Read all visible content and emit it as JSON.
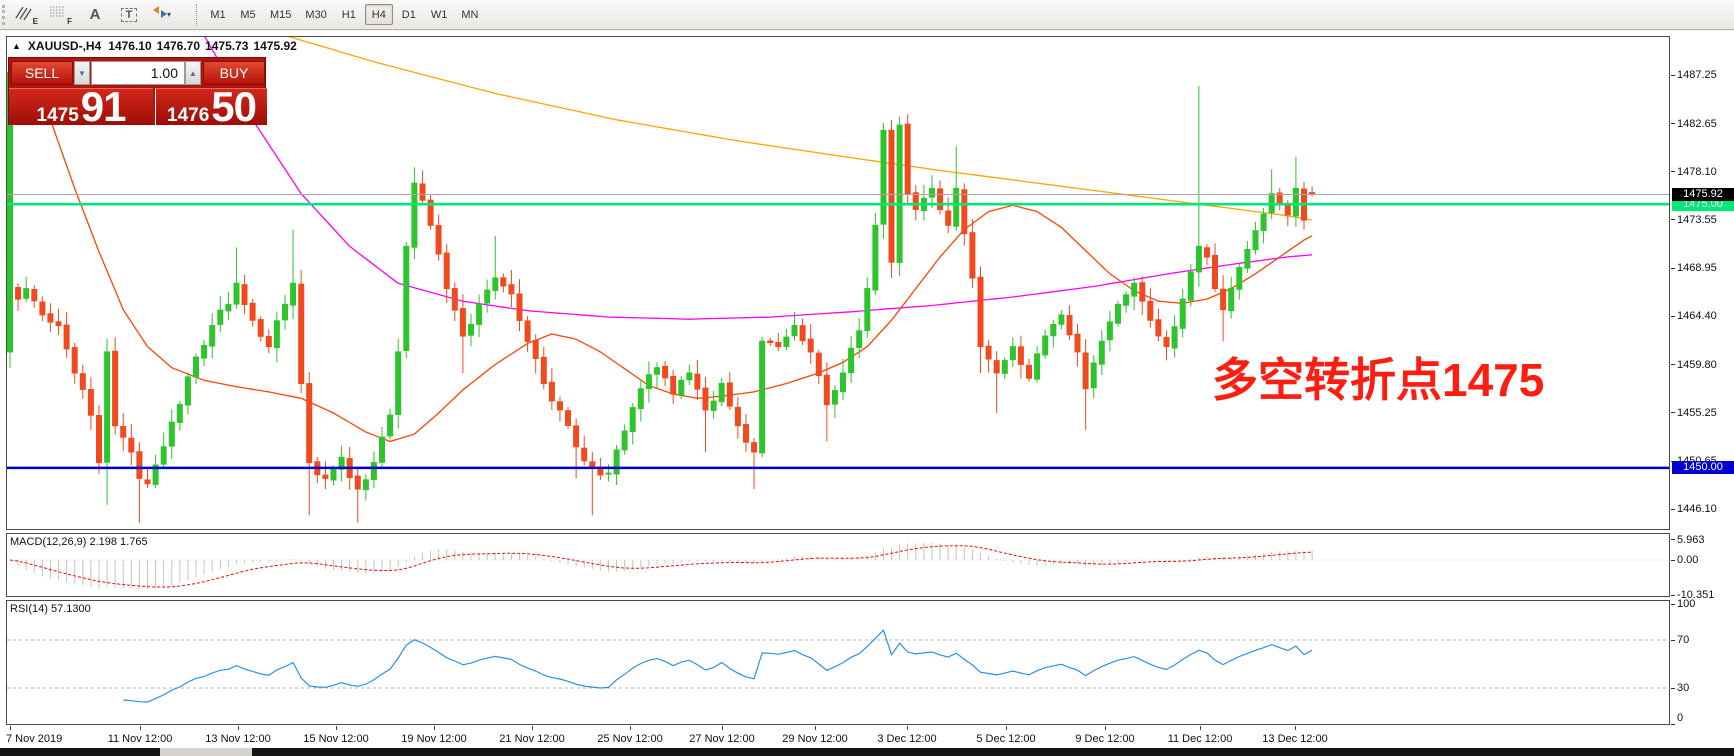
{
  "toolbar": {
    "icons": [
      {
        "name": "hatch-e-icon",
        "sub": "E"
      },
      {
        "name": "grid-f-icon",
        "sub": "F"
      },
      {
        "name": "text-label-icon",
        "sub": ""
      },
      {
        "name": "text-box-icon",
        "sub": ""
      },
      {
        "name": "cycle-arrows-icon",
        "sub": "▾"
      }
    ],
    "timeframes": [
      {
        "label": "M1",
        "active": false
      },
      {
        "label": "M5",
        "active": false
      },
      {
        "label": "M15",
        "active": false
      },
      {
        "label": "M30",
        "active": false
      },
      {
        "label": "H1",
        "active": false
      },
      {
        "label": "H4",
        "active": true
      },
      {
        "label": "D1",
        "active": false
      },
      {
        "label": "W1",
        "active": false
      },
      {
        "label": "MN",
        "active": false
      }
    ]
  },
  "chart": {
    "symbol_line": {
      "arrow": "▲",
      "title": "XAUUSD-,H4",
      "open": "1476.10",
      "high": "1476.70",
      "low": "1475.73",
      "close": "1475.92"
    },
    "trade_panel": {
      "sell_label": "SELL",
      "buy_label": "BUY",
      "volume": "1.00",
      "spin_down": "▼",
      "spin_up": "▲",
      "sell_price_small": "1475",
      "sell_price_big": "91",
      "buy_price_small": "1476",
      "buy_price_big": "50"
    },
    "annotation": {
      "text": "多空转折点1475",
      "color": "#fe1d10"
    },
    "price_axis": {
      "ticks": [
        1487.25,
        1482.65,
        1478.1,
        1473.55,
        1468.95,
        1464.4,
        1459.8,
        1455.25,
        1450.65,
        1446.1
      ],
      "current_price": {
        "label": "1475.92",
        "value": 1475.92,
        "bg": "#000000"
      },
      "hlines": [
        {
          "label": "1475.00",
          "value": 1475.0,
          "color": "#00e87a"
        },
        {
          "label": "1450.00",
          "value": 1450.0,
          "color": "#0000d0"
        }
      ]
    },
    "time_axis": {
      "labels": [
        "7 Nov 2019",
        "11 Nov 12:00",
        "13 Nov 12:00",
        "15 Nov 12:00",
        "19 Nov 12:00",
        "21 Nov 12:00",
        "25 Nov 12:00",
        "27 Nov 12:00",
        "29 Nov 12:00",
        "3 Dec 12:00",
        "5 Dec 12:00",
        "9 Dec 12:00",
        "11 Dec 12:00",
        "13 Dec 12:00"
      ]
    }
  },
  "chart_data": {
    "type": "candlestick",
    "symbol": "XAUUSD",
    "timeframe": "H4",
    "bars": 162,
    "seed": 7,
    "y_domain": [
      1444.3,
      1490.8
    ],
    "colors": {
      "up": "#2dc42d",
      "down": "#f04a1e",
      "ma_orange": "#ffa500",
      "ma_magenta": "#ff00ff",
      "ma_red": "#ff4500",
      "hline_green": "#00e87a",
      "hline_blue": "#0000d0",
      "cur_price_line": "#a8a8a8",
      "macd_hist": "#c4c4c4",
      "macd_signal": "#ff0000",
      "rsi_line": "#2f8fe8"
    },
    "first_bar": {
      "o": 1461.0,
      "h": 1489.0,
      "l": 1459.5,
      "c": 1487.5
    },
    "last_bar": {
      "o": 1476.1,
      "h": 1476.7,
      "l": 1475.73,
      "c": 1475.92
    },
    "gap_open_bars": [
      1
    ],
    "close_anchors": [
      [
        1,
        1466
      ],
      [
        2,
        1467
      ],
      [
        4,
        1464.5
      ],
      [
        6,
        1463.5
      ],
      [
        8,
        1459
      ],
      [
        10,
        1455
      ],
      [
        11,
        1450.5
      ],
      [
        12,
        1461
      ],
      [
        13,
        1454
      ],
      [
        15,
        1451.5
      ],
      [
        16,
        1449
      ],
      [
        17,
        1448.5
      ],
      [
        19,
        1452
      ],
      [
        21,
        1456
      ],
      [
        23,
        1460.5
      ],
      [
        25,
        1463.5
      ],
      [
        27,
        1465.5
      ],
      [
        28,
        1467.5
      ],
      [
        30,
        1464
      ],
      [
        32,
        1461.5
      ],
      [
        34,
        1465.5
      ],
      [
        35,
        1467.5
      ],
      [
        36,
        1458
      ],
      [
        37,
        1450.5
      ],
      [
        39,
        1449
      ],
      [
        41,
        1451
      ],
      [
        43,
        1448
      ],
      [
        45,
        1450.5
      ],
      [
        47,
        1455
      ],
      [
        48,
        1461
      ],
      [
        49,
        1471
      ],
      [
        50,
        1477
      ],
      [
        52,
        1473
      ],
      [
        54,
        1467
      ],
      [
        56,
        1462.5
      ],
      [
        58,
        1465.5
      ],
      [
        60,
        1468
      ],
      [
        62,
        1466.5
      ],
      [
        64,
        1462
      ],
      [
        66,
        1458
      ],
      [
        68,
        1455.5
      ],
      [
        70,
        1452
      ],
      [
        72,
        1450
      ],
      [
        74,
        1449.5
      ],
      [
        76,
        1453.5
      ],
      [
        78,
        1457.5
      ],
      [
        80,
        1459.5
      ],
      [
        82,
        1457
      ],
      [
        84,
        1459
      ],
      [
        86,
        1455.5
      ],
      [
        88,
        1458
      ],
      [
        90,
        1454
      ],
      [
        92,
        1451.5
      ],
      [
        93,
        1462
      ],
      [
        95,
        1461.5
      ],
      [
        97,
        1463.5
      ],
      [
        99,
        1461
      ],
      [
        101,
        1456
      ],
      [
        103,
        1459
      ],
      [
        105,
        1463
      ],
      [
        106,
        1467
      ],
      [
        107,
        1473
      ],
      [
        108,
        1482
      ],
      [
        109,
        1469.5
      ],
      [
        110,
        1482.5
      ],
      [
        111,
        1476
      ],
      [
        112,
        1474.5
      ],
      [
        114,
        1476.5
      ],
      [
        116,
        1473
      ],
      [
        117,
        1476.5
      ],
      [
        119,
        1468
      ],
      [
        120,
        1461.5
      ],
      [
        122,
        1459
      ],
      [
        124,
        1461.5
      ],
      [
        126,
        1458.5
      ],
      [
        128,
        1462.5
      ],
      [
        130,
        1464.5
      ],
      [
        132,
        1461
      ],
      [
        133,
        1457.5
      ],
      [
        135,
        1462
      ],
      [
        137,
        1465.5
      ],
      [
        139,
        1467.5
      ],
      [
        141,
        1464
      ],
      [
        143,
        1461.5
      ],
      [
        145,
        1466
      ],
      [
        147,
        1471
      ],
      [
        148,
        1470
      ],
      [
        149,
        1467
      ],
      [
        150,
        1465
      ],
      [
        152,
        1469
      ],
      [
        154,
        1472.5
      ],
      [
        156,
        1476
      ],
      [
        158,
        1474
      ],
      [
        159,
        1476.5
      ],
      [
        160,
        1473.5
      ],
      [
        161,
        1475.92
      ]
    ],
    "wick_lows": [
      [
        12,
        1446.5
      ],
      [
        16,
        1444.8
      ],
      [
        37,
        1445.5
      ],
      [
        43,
        1444.8
      ],
      [
        56,
        1459
      ],
      [
        70,
        1449
      ],
      [
        72,
        1445.5
      ],
      [
        86,
        1451.5
      ],
      [
        92,
        1448
      ],
      [
        101,
        1452.5
      ],
      [
        109,
        1468
      ],
      [
        110,
        1468.2
      ],
      [
        120,
        1459
      ],
      [
        122,
        1455.2
      ],
      [
        133,
        1453.6
      ],
      [
        150,
        1462
      ]
    ],
    "wick_highs": [
      [
        28,
        1470.9
      ],
      [
        35,
        1472.6
      ],
      [
        50,
        1478.5
      ],
      [
        60,
        1472
      ],
      [
        109,
        1483
      ],
      [
        110,
        1483.3
      ],
      [
        117,
        1480.5
      ],
      [
        147,
        1486.2
      ],
      [
        156,
        1478.3
      ],
      [
        159,
        1479.5
      ]
    ],
    "moving_averages": {
      "orange": [
        [
          34,
          1491
        ],
        [
          45,
          1488.5
        ],
        [
          60,
          1485.5
        ],
        [
          75,
          1483
        ],
        [
          90,
          1481
        ],
        [
          105,
          1479.3
        ],
        [
          115,
          1478.2
        ],
        [
          125,
          1477.2
        ],
        [
          135,
          1476.2
        ],
        [
          145,
          1475.2
        ],
        [
          152,
          1474.5
        ],
        [
          158,
          1473.9
        ],
        [
          161,
          1473.5
        ]
      ],
      "magenta": [
        [
          24,
          1491
        ],
        [
          30,
          1483
        ],
        [
          36,
          1476
        ],
        [
          42,
          1471
        ],
        [
          48,
          1467.5
        ],
        [
          56,
          1465.8
        ],
        [
          64,
          1464.9
        ],
        [
          74,
          1464.3
        ],
        [
          84,
          1464.1
        ],
        [
          94,
          1464.3
        ],
        [
          104,
          1464.8
        ],
        [
          114,
          1465.4
        ],
        [
          124,
          1466.2
        ],
        [
          134,
          1467.2
        ],
        [
          144,
          1468.5
        ],
        [
          152,
          1469.4
        ],
        [
          158,
          1470
        ],
        [
          161,
          1470.2
        ]
      ],
      "red": [
        [
          5,
          1483
        ],
        [
          8,
          1476.5
        ],
        [
          11,
          1470.5
        ],
        [
          14,
          1465
        ],
        [
          17,
          1461.5
        ],
        [
          20,
          1459.5
        ],
        [
          24,
          1458.3
        ],
        [
          28,
          1457.7
        ],
        [
          32,
          1457.2
        ],
        [
          36,
          1456.6
        ],
        [
          40,
          1455.2
        ],
        [
          44,
          1453.4
        ],
        [
          47,
          1452.5
        ],
        [
          50,
          1453.2
        ],
        [
          53,
          1455.2
        ],
        [
          56,
          1457.4
        ],
        [
          60,
          1459.8
        ],
        [
          64,
          1461.8
        ],
        [
          67,
          1462.7
        ],
        [
          70,
          1462.2
        ],
        [
          73,
          1461
        ],
        [
          76,
          1459.4
        ],
        [
          79,
          1457.8
        ],
        [
          82,
          1457
        ],
        [
          85,
          1456.6
        ],
        [
          88,
          1456.8
        ],
        [
          92,
          1457.2
        ],
        [
          96,
          1458
        ],
        [
          100,
          1459
        ],
        [
          103,
          1460
        ],
        [
          106,
          1461.5
        ],
        [
          109,
          1464
        ],
        [
          112,
          1467
        ],
        [
          115,
          1470
        ],
        [
          118,
          1472.6
        ],
        [
          121,
          1474.3
        ],
        [
          124,
          1474.9
        ],
        [
          127,
          1474.3
        ],
        [
          130,
          1472.8
        ],
        [
          133,
          1470.6
        ],
        [
          136,
          1468.4
        ],
        [
          139,
          1466.8
        ],
        [
          142,
          1465.8
        ],
        [
          145,
          1465.6
        ],
        [
          148,
          1466
        ],
        [
          151,
          1467
        ],
        [
          154,
          1468.4
        ],
        [
          157,
          1470
        ],
        [
          160,
          1471.6
        ],
        [
          161,
          1472
        ]
      ]
    }
  },
  "macd": {
    "label": "MACD(12,26,9) 2.198 1.765",
    "params": "12,26,9",
    "value_main": 2.198,
    "value_signal": 1.765,
    "axis": {
      "top": "5.963",
      "zero": "0.00",
      "bottom": "-10.351"
    },
    "axis_values": [
      5.963,
      0.0,
      -10.351
    ]
  },
  "rsi": {
    "label": "RSI(14) 57.1300",
    "period": 14,
    "value": 57.13,
    "levels": [
      100,
      70,
      30,
      0
    ],
    "dashed_levels": [
      70,
      30
    ]
  }
}
